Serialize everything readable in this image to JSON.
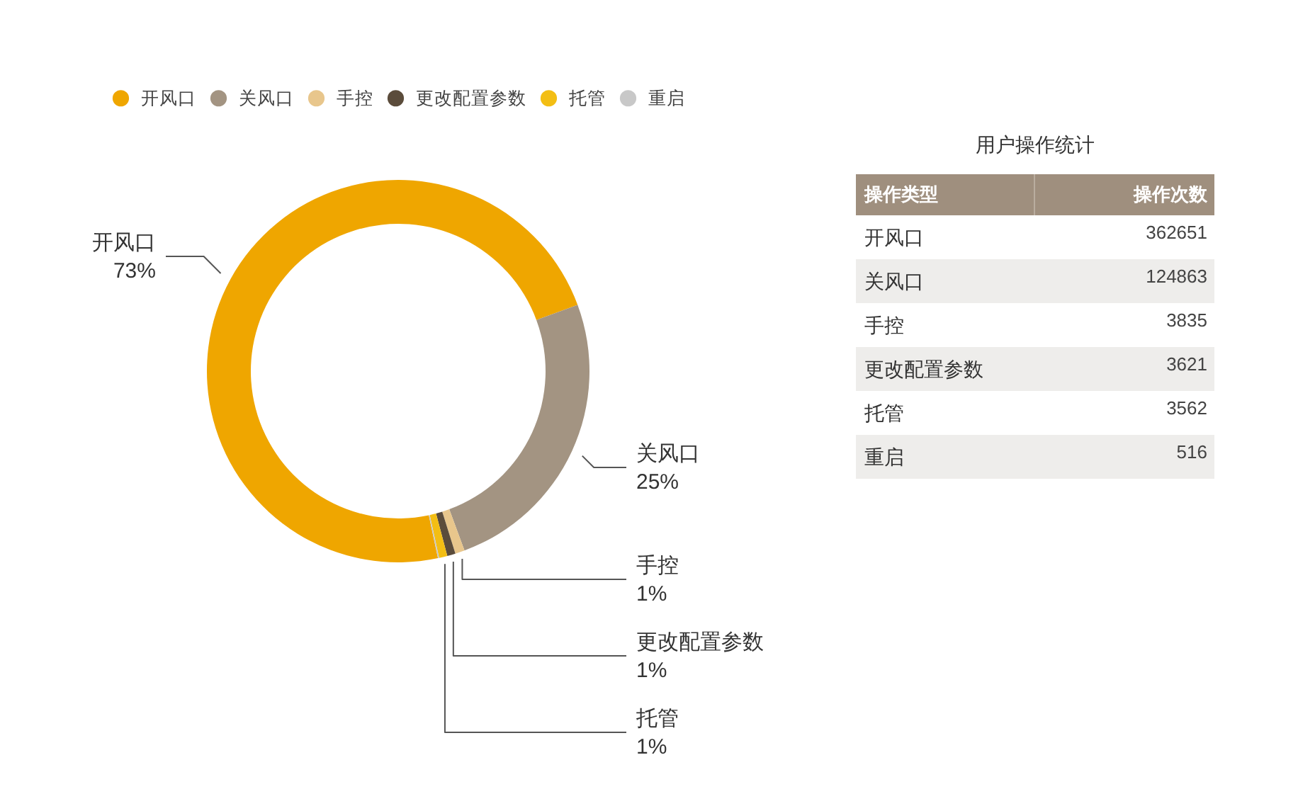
{
  "chart_data": [
    {
      "type": "donut",
      "categories": [
        "开风口",
        "关风口",
        "手控",
        "更改配置参数",
        "托管",
        "重启"
      ],
      "values": [
        72.7,
        25.0,
        0.8,
        0.7,
        0.7,
        0.1
      ],
      "colors": [
        "#efa600",
        "#a39482",
        "#e8c68c",
        "#5b4c3b",
        "#f3be14",
        "#c8c8c8"
      ],
      "value_labels": [
        "73%",
        "25%",
        "1%",
        "1%",
        "1%",
        null
      ],
      "legend": "top left"
    },
    {
      "type": "other",
      "title": "用户操作统计",
      "xlabel": "操作类型",
      "ylabel": "操作次数",
      "categories": [
        "开风口",
        "关风口",
        "手控",
        "更改配置参数",
        "托管",
        "重启"
      ],
      "values": [
        362651,
        124863,
        3835,
        3621,
        3562,
        516
      ],
      "data_labels": true
    }
  ]
}
